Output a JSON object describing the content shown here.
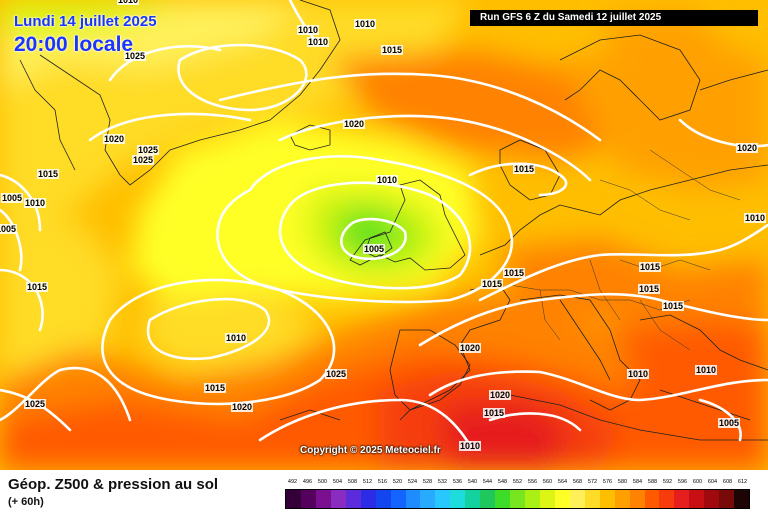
{
  "header": {
    "date": "Lundi 14 juillet 2025",
    "local_time": "20:00 locale",
    "run_info": "Run GFS 6 Z du Samedi 12 juillet 2025"
  },
  "copyright": "Copyright © 2025 Meteociel.fr",
  "footer": {
    "parameter_title": "Géop. Z500 & pression au sol",
    "lead_time": "(+ 60h)"
  },
  "scale": {
    "labels": [
      "492",
      "496",
      "500",
      "504",
      "508",
      "512",
      "516",
      "520",
      "524",
      "528",
      "532",
      "536",
      "540",
      "544",
      "548",
      "552",
      "556",
      "560",
      "564",
      "568",
      "572",
      "576",
      "580",
      "584",
      "588",
      "592",
      "596",
      "600",
      "604",
      "608",
      "612"
    ],
    "colors": [
      "#33003a",
      "#55005e",
      "#7a1090",
      "#8a2cc0",
      "#5c2cdc",
      "#2c2ce6",
      "#1446f0",
      "#1464ff",
      "#1e8cff",
      "#28aaff",
      "#28c8ff",
      "#1edcdc",
      "#14d2a0",
      "#1ec85a",
      "#3cdc28",
      "#78e61e",
      "#aaf014",
      "#dcf514",
      "#ffff28",
      "#fff05a",
      "#ffdc28",
      "#ffbe00",
      "#ffa000",
      "#ff8200",
      "#ff5a00",
      "#f53c0a",
      "#e61e1e",
      "#c80f14",
      "#a00a0f",
      "#780a0a",
      "#1e0505"
    ]
  },
  "isobar_labels": [
    {
      "text": "1010"
    },
    {
      "text": "1010"
    },
    {
      "text": "1010"
    },
    {
      "text": "1010"
    },
    {
      "text": "1025"
    },
    {
      "text": "1015"
    },
    {
      "text": "1020"
    },
    {
      "text": "1020"
    },
    {
      "text": "1025"
    },
    {
      "text": "1025"
    },
    {
      "text": "1015"
    },
    {
      "text": "1005"
    },
    {
      "text": "1010"
    },
    {
      "text": "1005"
    },
    {
      "text": "1010"
    },
    {
      "text": "1015"
    },
    {
      "text": "1005"
    },
    {
      "text": "1015"
    },
    {
      "text": "1015"
    },
    {
      "text": "1015"
    },
    {
      "text": "1020"
    },
    {
      "text": "1010"
    },
    {
      "text": "1015"
    },
    {
      "text": "1015"
    },
    {
      "text": "1010"
    },
    {
      "text": "1020"
    },
    {
      "text": "1015"
    },
    {
      "text": "1010"
    },
    {
      "text": "1010"
    },
    {
      "text": "1025"
    },
    {
      "text": "1025"
    },
    {
      "text": "1015"
    },
    {
      "text": "1020"
    },
    {
      "text": "1020"
    },
    {
      "text": "1015"
    },
    {
      "text": "1010"
    },
    {
      "text": "1005"
    }
  ]
}
